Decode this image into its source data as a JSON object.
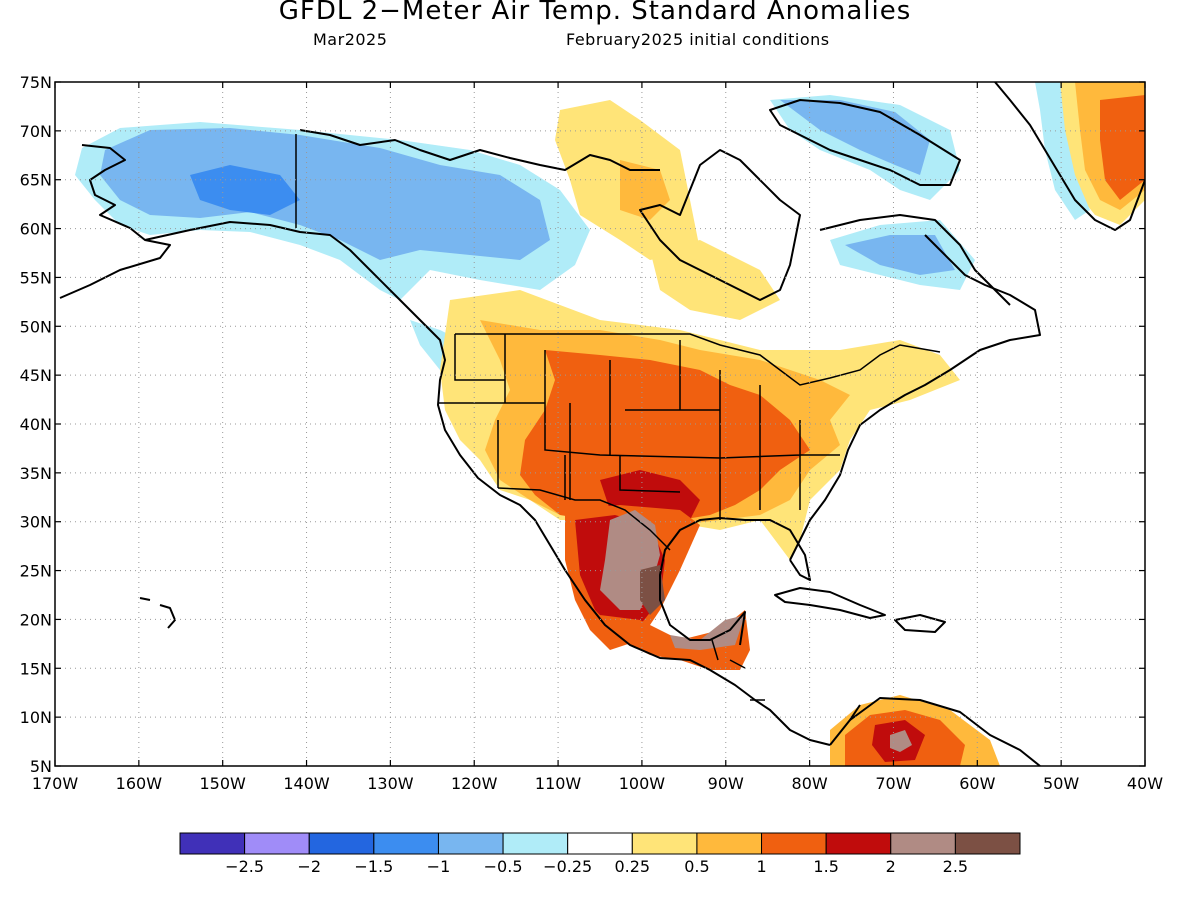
{
  "header": {
    "title": "GFDL 2−Meter Air Temp. Standard Anomalies",
    "valid_month": "Mar2025",
    "initial_conditions": "February2025 initial conditions"
  },
  "map": {
    "lat_labels": [
      "75N",
      "70N",
      "65N",
      "60N",
      "55N",
      "50N",
      "45N",
      "40N",
      "35N",
      "30N",
      "25N",
      "20N",
      "15N",
      "10N",
      "5N"
    ],
    "lon_labels": [
      "170W",
      "160W",
      "150W",
      "140W",
      "130W",
      "120W",
      "110W",
      "100W",
      "90W",
      "80W",
      "70W",
      "60W",
      "50W",
      "40W"
    ]
  },
  "colorbar": {
    "colors": [
      "#4030b8",
      "#a08cf8",
      "#2366e0",
      "#3c8df0",
      "#78b6f0",
      "#b0ecf8",
      "#ffffff",
      "#ffe478",
      "#ffb93c",
      "#f06010",
      "#c00c0c",
      "#b08b84",
      "#7c5044"
    ],
    "labels": [
      "−2.5",
      "−2",
      "−1.5",
      "−1",
      "−0.5",
      "−0.25",
      "0.25",
      "0.5",
      "1",
      "1.5",
      "2",
      "2.5"
    ]
  }
}
